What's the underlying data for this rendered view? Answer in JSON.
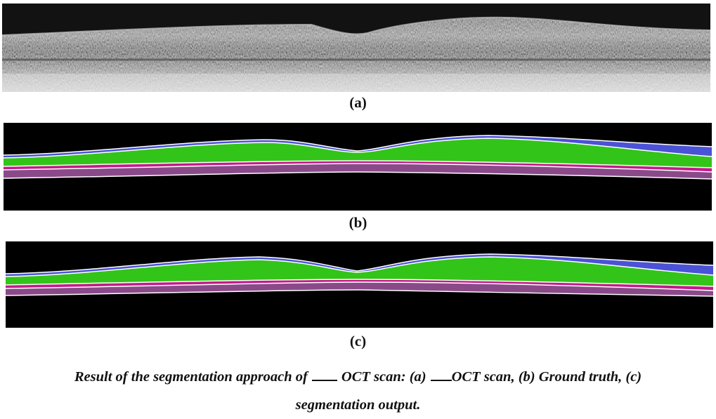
{
  "figure": {
    "panels": [
      {
        "id": "a",
        "label": "(a)",
        "kind": "oct-grayscale-scan"
      },
      {
        "id": "b",
        "label": "(b)",
        "kind": "layer-segmentation-map"
      },
      {
        "id": "c",
        "label": "(c)",
        "kind": "layer-segmentation-map"
      }
    ],
    "layer_colors": {
      "background": "#000000",
      "boundary": "#ffffff",
      "top_layer": "#4a52d6",
      "second_layer": "#33c41a",
      "third_layer": "#c41a8a",
      "fourth_layer": "#8a4a8a"
    }
  },
  "caption": {
    "part1": "Result of the segmentation approach of",
    "part2": "OCT scan: (a)",
    "part3": "OCT scan, (b) Ground truth, (c)",
    "line2": "segmentation output."
  }
}
